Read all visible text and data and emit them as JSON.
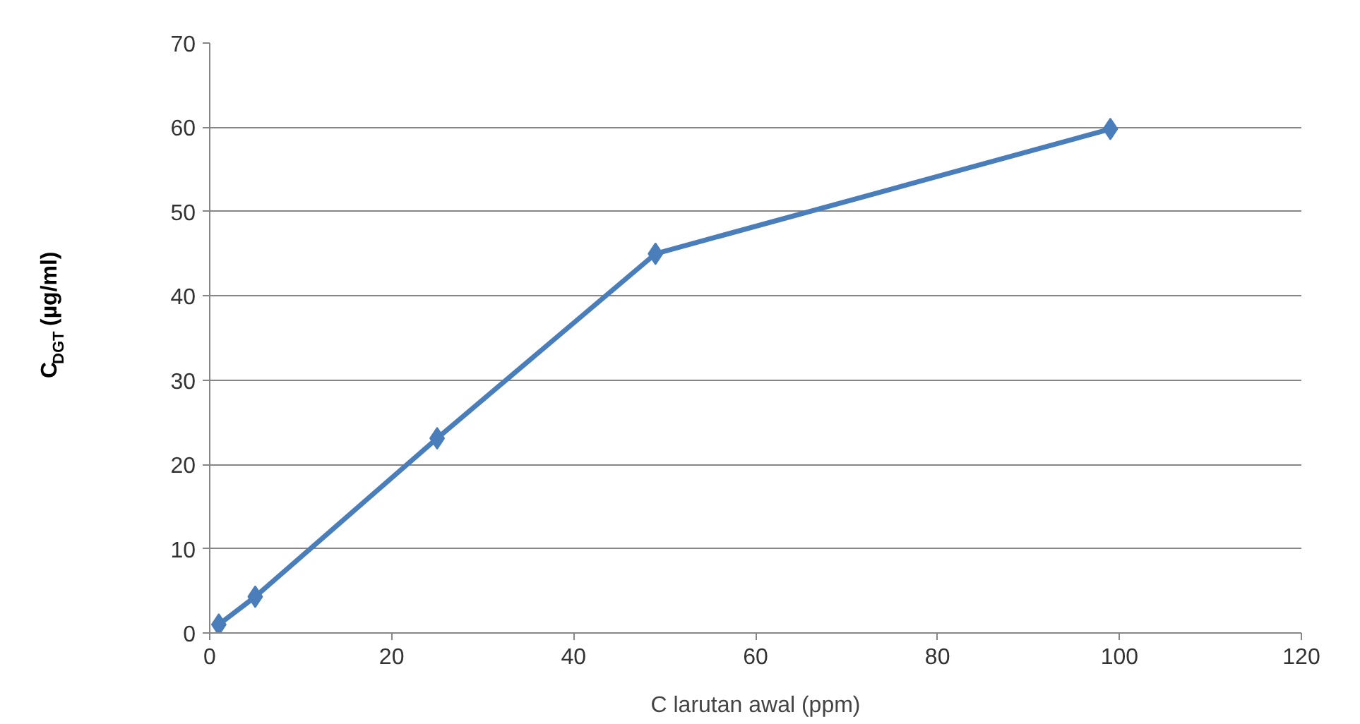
{
  "chart_data": {
    "type": "line",
    "xlabel": "C larutan awal (ppm)",
    "ylabel": "C$_{DGT}$ (µg/ml)",
    "x": [
      1,
      5,
      25,
      49,
      99
    ],
    "series": [
      {
        "color": "#4a7ebb",
        "values": [
          1,
          4.3,
          23.1,
          45,
          59.8
        ]
      }
    ],
    "xlim": [
      0,
      120
    ],
    "xticks": [
      0,
      20,
      40,
      60,
      80,
      100,
      120
    ],
    "ylim": [
      0,
      70
    ],
    "yticks": [
      0,
      10,
      20,
      30,
      40,
      50,
      60,
      70
    ],
    "grid": "y",
    "marker": "diamond",
    "line_style": "solid"
  }
}
